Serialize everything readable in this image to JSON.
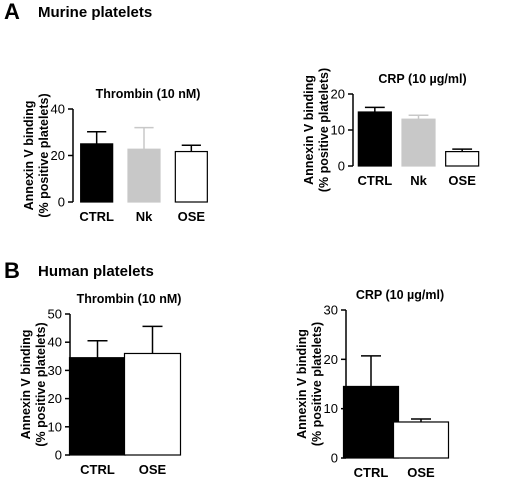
{
  "panels": [
    {
      "letter": "A",
      "title": "Murine platelets"
    },
    {
      "letter": "B",
      "title": "Human platelets"
    }
  ],
  "ylabel_line1": "Annexin V binding",
  "ylabel_line2": "(% positive platelets)",
  "chart_data": [
    {
      "type": "bar",
      "title": "Thrombin (10 nM)",
      "categories": [
        "CTRL",
        "Nk",
        "OSE"
      ],
      "values": [
        25,
        22.7,
        21.7
      ],
      "errors": [
        5.2,
        9.3,
        2.7
      ],
      "colors": [
        "#000000",
        "#c8c8c8",
        "#ffffff"
      ],
      "errColors": [
        "#000000",
        "#c8c8c8",
        "#000000"
      ],
      "ylim": [
        0,
        40
      ],
      "yticks": [
        "0",
        "20",
        "40"
      ]
    },
    {
      "type": "bar",
      "title": "CRP (10 µg/ml)",
      "categories": [
        "CTRL",
        "Nk",
        "OSE"
      ],
      "values": [
        15,
        13,
        4
      ],
      "errors": [
        1.3,
        1.1,
        0.7
      ],
      "colors": [
        "#000000",
        "#c8c8c8",
        "#ffffff"
      ],
      "errColors": [
        "#000000",
        "#c8c8c8",
        "#000000"
      ],
      "ylim": [
        0,
        20
      ],
      "yticks": [
        "0",
        "10",
        "20"
      ]
    },
    {
      "type": "bar",
      "title": "Thrombin (10 nM)",
      "categories": [
        "CTRL",
        "OSE"
      ],
      "values": [
        34.5,
        36
      ],
      "errors": [
        6,
        9.6
      ],
      "colors": [
        "#000000",
        "#ffffff"
      ],
      "errColors": [
        "#000000",
        "#000000"
      ],
      "ylim": [
        0,
        50
      ],
      "yticks": [
        "0",
        "10",
        "20",
        "30",
        "40",
        "50"
      ]
    },
    {
      "type": "bar",
      "title": "CRP (10 µg/ml)",
      "categories": [
        "CTRL",
        "OSE"
      ],
      "values": [
        14.5,
        7.3
      ],
      "errors": [
        6.2,
        0.6
      ],
      "colors": [
        "#000000",
        "#ffffff"
      ],
      "errColors": [
        "#000000",
        "#000000"
      ],
      "ylim": [
        0,
        30
      ],
      "yticks": [
        "0",
        "10",
        "20",
        "30"
      ]
    }
  ]
}
